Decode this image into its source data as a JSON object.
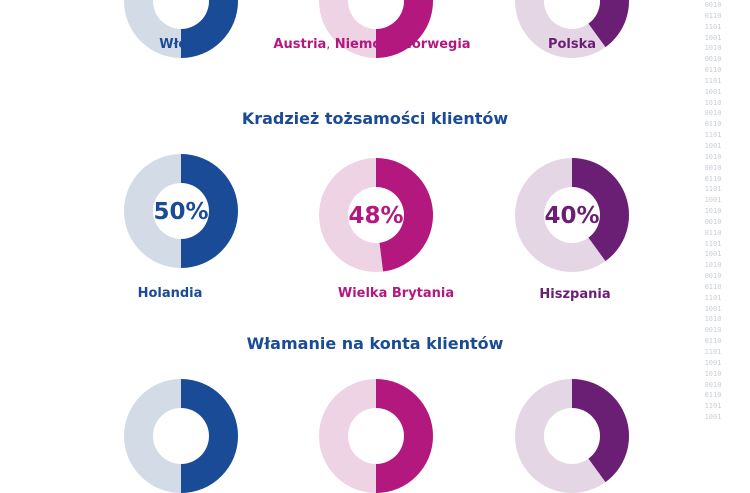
{
  "colors": {
    "blue": "#1a4b96",
    "blue_light": "#d3dbe7",
    "magenta": "#b3187f",
    "magenta_light": "#eed3e5",
    "purple": "#6b1f74",
    "purple_light": "#e4d6e5",
    "binary": "#c9ced6"
  },
  "top_row": {
    "donuts": [
      {
        "country": "Włochy",
        "value": 0.5,
        "color": "blue"
      },
      {
        "country_parts": [
          "Austria",
          ",",
          " Niemcy ",
          "i",
          " Norwegia"
        ],
        "value": 0.5,
        "color": "magenta"
      },
      {
        "country": "Polska",
        "value": 0.4,
        "color": "purple"
      }
    ]
  },
  "identity_theft": {
    "heading": "Kradzież tożsamości klientów",
    "donuts": [
      {
        "country": "Holandia",
        "pct_label": "50%",
        "value": 0.5,
        "color": "blue"
      },
      {
        "country": "Wielka Brytania",
        "pct_label": "48%",
        "value": 0.48,
        "color": "magenta"
      },
      {
        "country": "Hiszpania",
        "pct_label": "40%",
        "value": 0.4,
        "color": "purple"
      }
    ]
  },
  "account_breach": {
    "heading": "Włamanie na konta klientów",
    "donuts": [
      {
        "value": 0.5,
        "color": "blue"
      },
      {
        "value": 0.5,
        "color": "magenta"
      },
      {
        "value": 0.4,
        "color": "purple"
      }
    ]
  },
  "binary_column": [
    "0010",
    "0110",
    "1101",
    "1001",
    "1010",
    "0010",
    "0110",
    "1101",
    "1001",
    "1010",
    "0010",
    "0110",
    "1101",
    "1001",
    "1010",
    "0010",
    "0110",
    "1101",
    "1001",
    "1010",
    "0010",
    "0110",
    "1101",
    "1001",
    "1010",
    "0010",
    "0110",
    "1101",
    "1001",
    "1010",
    "0010",
    "0110",
    "1101",
    "1001",
    "1010",
    "0010",
    "0110",
    "1101",
    "1001"
  ]
}
